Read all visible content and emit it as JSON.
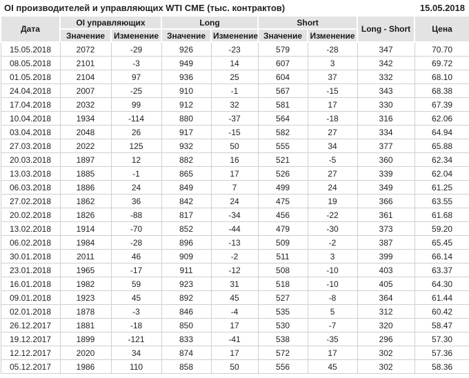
{
  "title": "OI производителей и управляющих WTI CME (тыс. контрактов)",
  "report_date": "15.05.2018",
  "colors": {
    "positive": "#2e8b2e",
    "negative": "#cc2222",
    "header_bg": "#e3e3e3",
    "grid": "#cfcfcf",
    "text": "#222222"
  },
  "header": {
    "date_label": "Дата",
    "oi_group_label": "OI управляющих",
    "long_group_label": "Long",
    "short_group_label": "Short",
    "value_label": "Значение",
    "change_label": "Изменение",
    "long_short_label": "Long - Short",
    "price_label": "Цена"
  },
  "chart_data": {
    "type": "table",
    "columns": [
      "Дата",
      "OI управляющих Значение",
      "OI управляющих Изменение",
      "Long Значение",
      "Long Изменение",
      "Short Значение",
      "Short Изменение",
      "Long - Short",
      "Цена"
    ],
    "rows": [
      [
        "15.05.2018",
        2072,
        -29,
        926,
        -23,
        579,
        -28,
        347,
        "70.70"
      ],
      [
        "08.05.2018",
        2101,
        -3,
        949,
        14,
        607,
        3,
        342,
        "69.72"
      ],
      [
        "01.05.2018",
        2104,
        97,
        936,
        25,
        604,
        37,
        332,
        "68.10"
      ],
      [
        "24.04.2018",
        2007,
        -25,
        910,
        -1,
        567,
        -15,
        343,
        "68.38"
      ],
      [
        "17.04.2018",
        2032,
        99,
        912,
        32,
        581,
        17,
        330,
        "67.39"
      ],
      [
        "10.04.2018",
        1934,
        -114,
        880,
        -37,
        564,
        -18,
        316,
        "62.06"
      ],
      [
        "03.04.2018",
        2048,
        26,
        917,
        -15,
        582,
        27,
        334,
        "64.94"
      ],
      [
        "27.03.2018",
        2022,
        125,
        932,
        50,
        555,
        34,
        377,
        "65.88"
      ],
      [
        "20.03.2018",
        1897,
        12,
        882,
        16,
        521,
        -5,
        360,
        "62.34"
      ],
      [
        "13.03.2018",
        1885,
        -1,
        865,
        17,
        526,
        27,
        339,
        "62.04"
      ],
      [
        "06.03.2018",
        1886,
        24,
        849,
        7,
        499,
        24,
        349,
        "61.25"
      ],
      [
        "27.02.2018",
        1862,
        36,
        842,
        24,
        475,
        19,
        366,
        "63.55"
      ],
      [
        "20.02.2018",
        1826,
        -88,
        817,
        -34,
        456,
        -22,
        361,
        "61.68"
      ],
      [
        "13.02.2018",
        1914,
        -70,
        852,
        -44,
        479,
        -30,
        373,
        "59.20"
      ],
      [
        "06.02.2018",
        1984,
        -28,
        896,
        -13,
        509,
        -2,
        387,
        "65.45"
      ],
      [
        "30.01.2018",
        2011,
        46,
        909,
        -2,
        511,
        3,
        399,
        "66.14"
      ],
      [
        "23.01.2018",
        1965,
        -17,
        911,
        -12,
        508,
        -10,
        403,
        "63.37"
      ],
      [
        "16.01.2018",
        1982,
        59,
        923,
        31,
        518,
        -10,
        405,
        "64.30"
      ],
      [
        "09.01.2018",
        1923,
        45,
        892,
        45,
        527,
        -8,
        364,
        "61.44"
      ],
      [
        "02.01.2018",
        1878,
        -3,
        846,
        -4,
        535,
        5,
        312,
        "60.42"
      ],
      [
        "26.12.2017",
        1881,
        -18,
        850,
        17,
        530,
        -7,
        320,
        "58.47"
      ],
      [
        "19.12.2017",
        1899,
        -121,
        833,
        -41,
        538,
        -35,
        296,
        "57.30"
      ],
      [
        "12.12.2017",
        2020,
        34,
        874,
        17,
        572,
        17,
        302,
        "57.36"
      ],
      [
        "05.12.2017",
        1986,
        110,
        858,
        50,
        556,
        45,
        302,
        "58.36"
      ]
    ]
  }
}
